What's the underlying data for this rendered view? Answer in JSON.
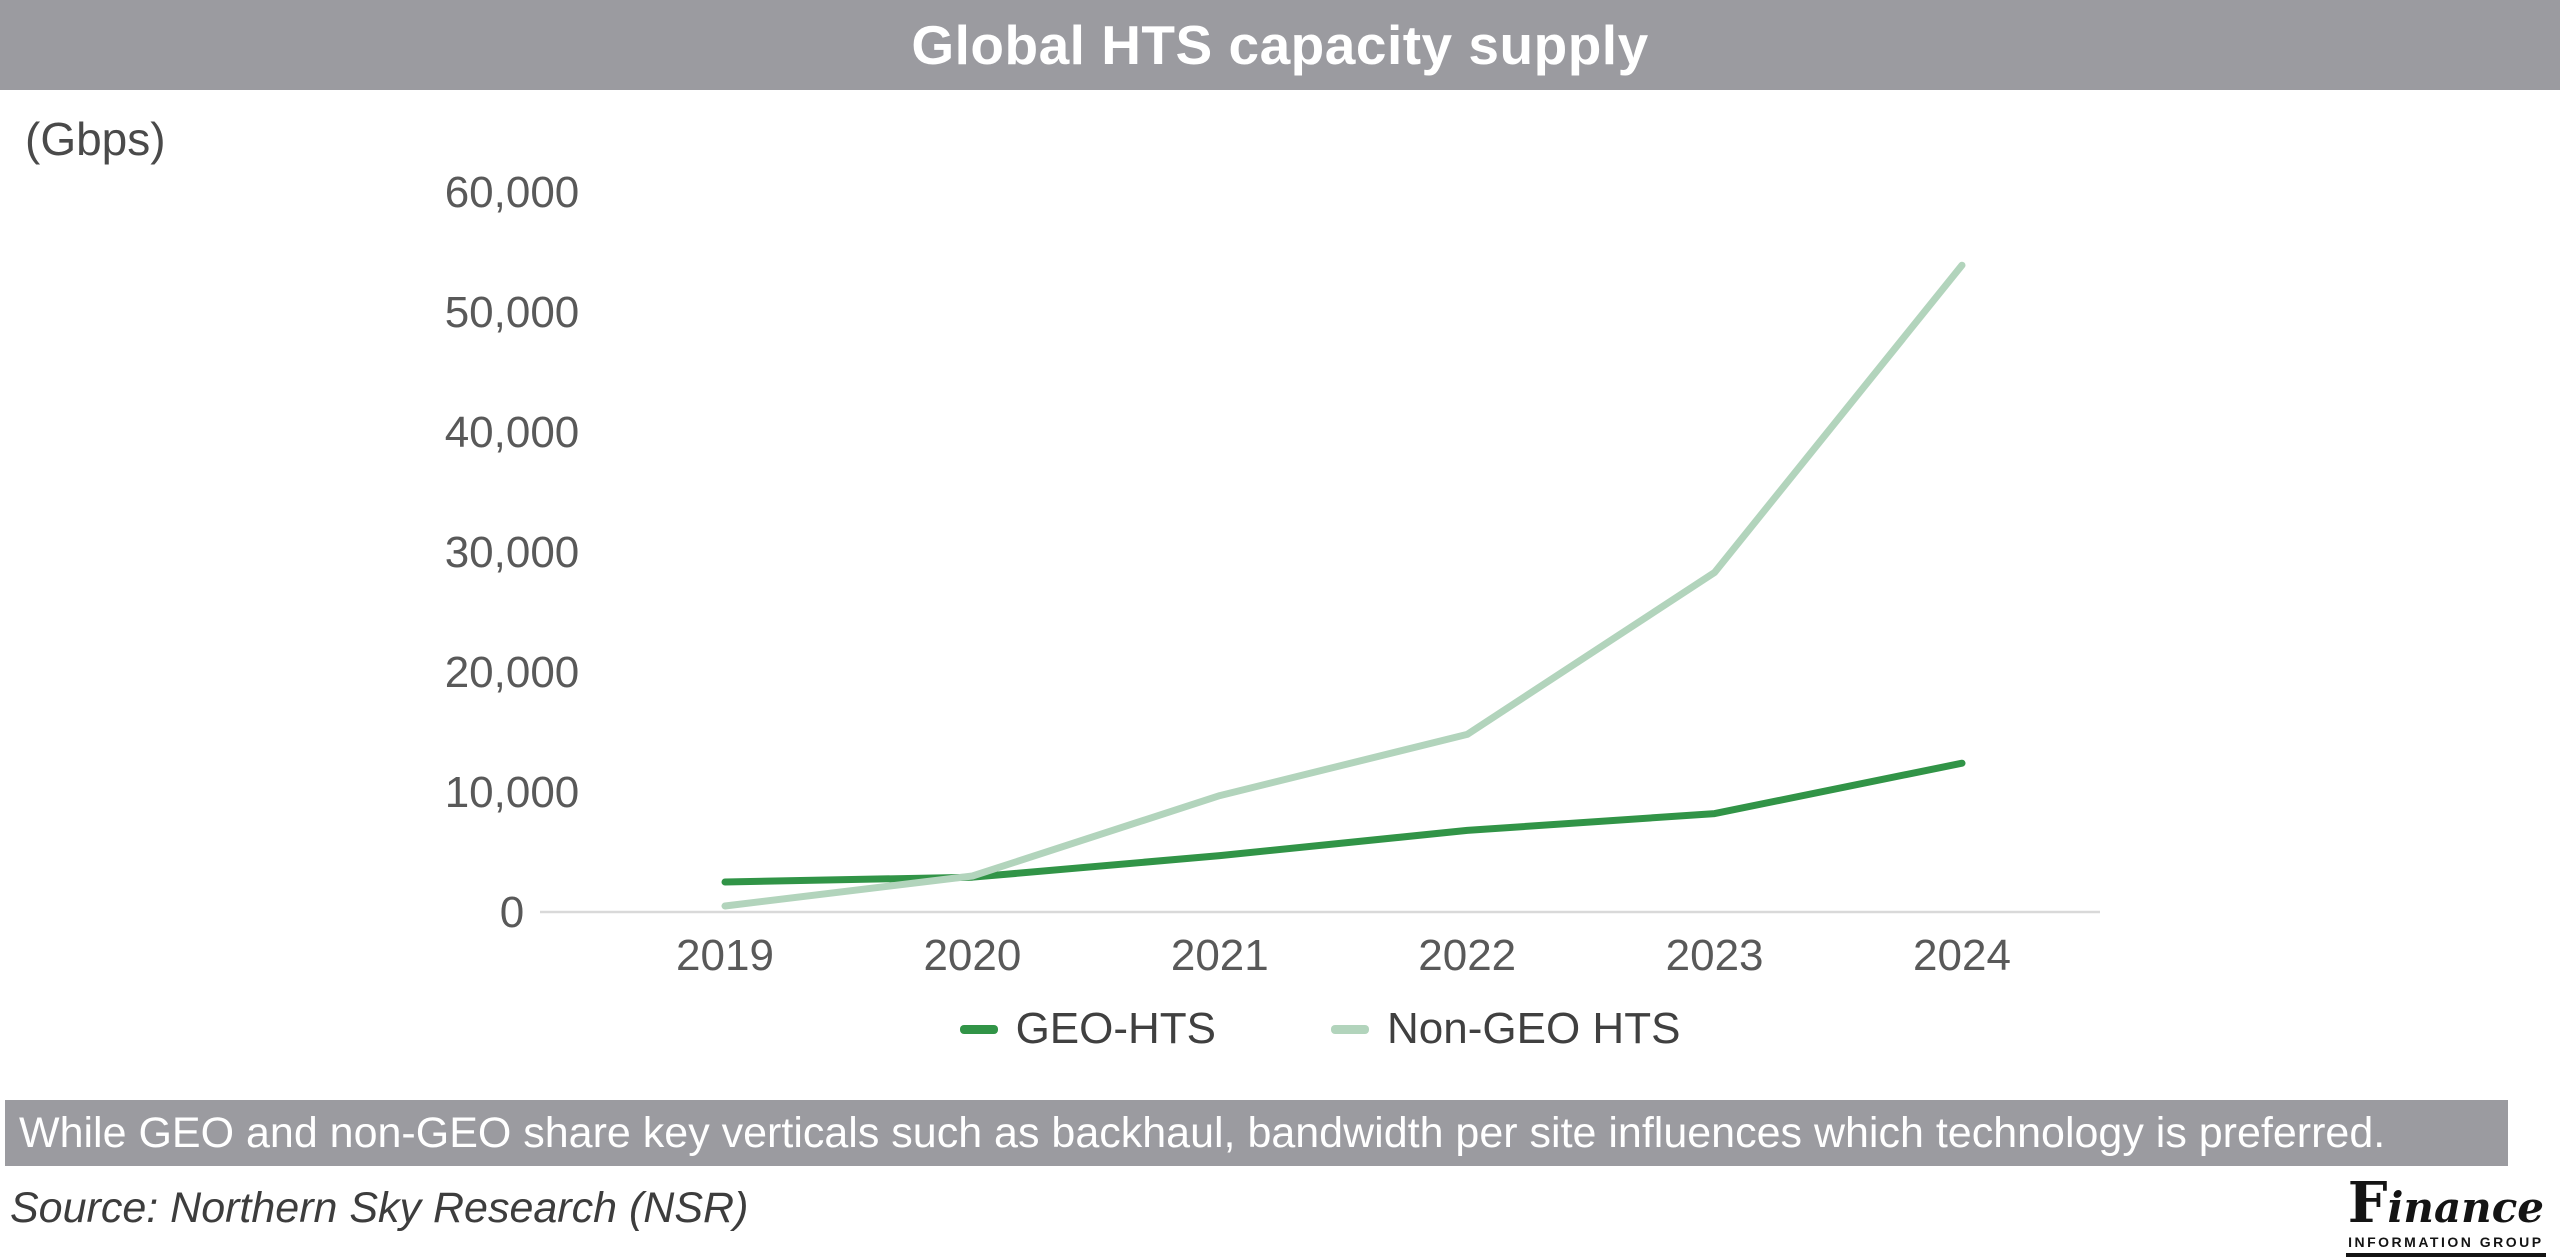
{
  "header": {
    "title": "Global HTS capacity supply"
  },
  "chart_data": {
    "type": "line",
    "title": "Global HTS capacity supply",
    "unit_label": "(Gbps)",
    "x": [
      "2019",
      "2020",
      "2021",
      "2022",
      "2023",
      "2024"
    ],
    "series": [
      {
        "name": "GEO-HTS",
        "color": "#319447",
        "values": [
          2500,
          2900,
          4700,
          6800,
          8200,
          12400
        ]
      },
      {
        "name": "Non-GEO HTS",
        "color": "#b2d4bc",
        "values": [
          500,
          3000,
          9700,
          14800,
          28300,
          53900
        ]
      }
    ],
    "ylim": [
      0,
      60000
    ],
    "ytick_step": 10000,
    "ytick_labels": [
      "0",
      "10,000",
      "20,000",
      "30,000",
      "40,000",
      "50,000",
      "60,000"
    ],
    "grid": false,
    "legend_position": "bottom",
    "axis_line_color": "#d9d9d9",
    "tick_text_color": "#595959"
  },
  "footer": {
    "callout": "While GEO and non-GEO share key verticals such as backhaul, bandwidth per site influences which technology is preferred.",
    "source": "Source: Northern Sky Research (NSR)"
  },
  "logo": {
    "name": "Finance",
    "subtitle": "INFORMATION GROUP"
  },
  "colors": {
    "band": "#9b9ba0",
    "title_text": "#ffffff"
  }
}
